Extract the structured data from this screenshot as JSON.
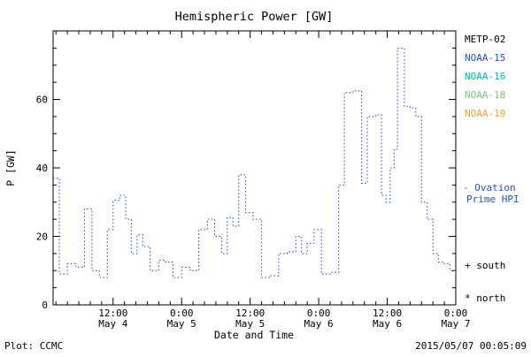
{
  "title": "Hemispheric Power [GW]",
  "plot_credit": "Plot: CCMC",
  "timestamp": "2015/05/07 00:05:09",
  "chart_data": {
    "type": "line",
    "style": "step-dotted",
    "title": "Hemispheric Power [GW]",
    "xlabel": "Date and Time",
    "ylabel": "P [GW]",
    "ylim": [
      0,
      80
    ],
    "yticks": [
      0,
      20,
      40,
      60
    ],
    "x_range_hours": [
      1.5,
      72
    ],
    "xticks": [
      {
        "hours": 12,
        "time": "12:00",
        "date": "May 4"
      },
      {
        "hours": 24,
        "time": "0:00",
        "date": "May 5"
      },
      {
        "hours": 36,
        "time": "12:00",
        "date": "May 5"
      },
      {
        "hours": 48,
        "time": "0:00",
        "date": "May 6"
      },
      {
        "hours": 60,
        "time": "12:00",
        "date": "May 6"
      },
      {
        "hours": 72,
        "time": "0:00",
        "date": "May 7"
      }
    ],
    "x_hours_since_may4_0000": [
      1.5,
      2.6,
      4.0,
      5.5,
      7.0,
      8.3,
      9.6,
      11.0,
      12.0,
      13.2,
      14.2,
      15.2,
      16.2,
      17.2,
      18.5,
      20.0,
      21.2,
      22.5,
      24.0,
      25.5,
      27.0,
      28.5,
      29.8,
      31.0,
      32.0,
      33.0,
      34.0,
      35.2,
      36.5,
      38.0,
      39.5,
      41.0,
      42.5,
      44.0,
      45.0,
      46.0,
      47.2,
      48.5,
      50.0,
      51.5,
      52.5,
      54.0,
      55.5,
      56.5,
      58.0,
      59.0,
      59.8,
      60.5,
      61.2,
      61.8,
      63.0,
      64.0,
      65.0,
      66.0,
      67.0,
      68.0,
      69.0,
      70.0,
      71.0,
      72.0
    ],
    "values": [
      37,
      9,
      12,
      11,
      28,
      10,
      8,
      22,
      30.5,
      32,
      25,
      15,
      20.5,
      17,
      10,
      13,
      12.5,
      8,
      11,
      10,
      22,
      25,
      20,
      15,
      25.5,
      23,
      38,
      27,
      25,
      8,
      8.5,
      15,
      15.5,
      20,
      15,
      18,
      22,
      9,
      9.5,
      35,
      62,
      62.5,
      35.5,
      55,
      55.5,
      32,
      30,
      40,
      45.5,
      75,
      58,
      57.5,
      55,
      30,
      25,
      15,
      12.5,
      12,
      10,
      9
    ],
    "line_color": "#2850c8"
  },
  "legend": {
    "satellites": [
      {
        "label": "METP-02",
        "color": "#000000"
      },
      {
        "label": "NOAA-15",
        "color": "#2850c8"
      },
      {
        "label": "NOAA-16",
        "color": "#00b8b8"
      },
      {
        "label": "NOAA-18",
        "color": "#7ec87e"
      },
      {
        "label": "NOAA-19",
        "color": "#e8a33d"
      }
    ],
    "model": {
      "line1": "- Ovation",
      "line2": "Prime HPI",
      "color": "#2850c8"
    },
    "markers": [
      {
        "label": "+ south"
      },
      {
        "label": "* north"
      }
    ]
  }
}
